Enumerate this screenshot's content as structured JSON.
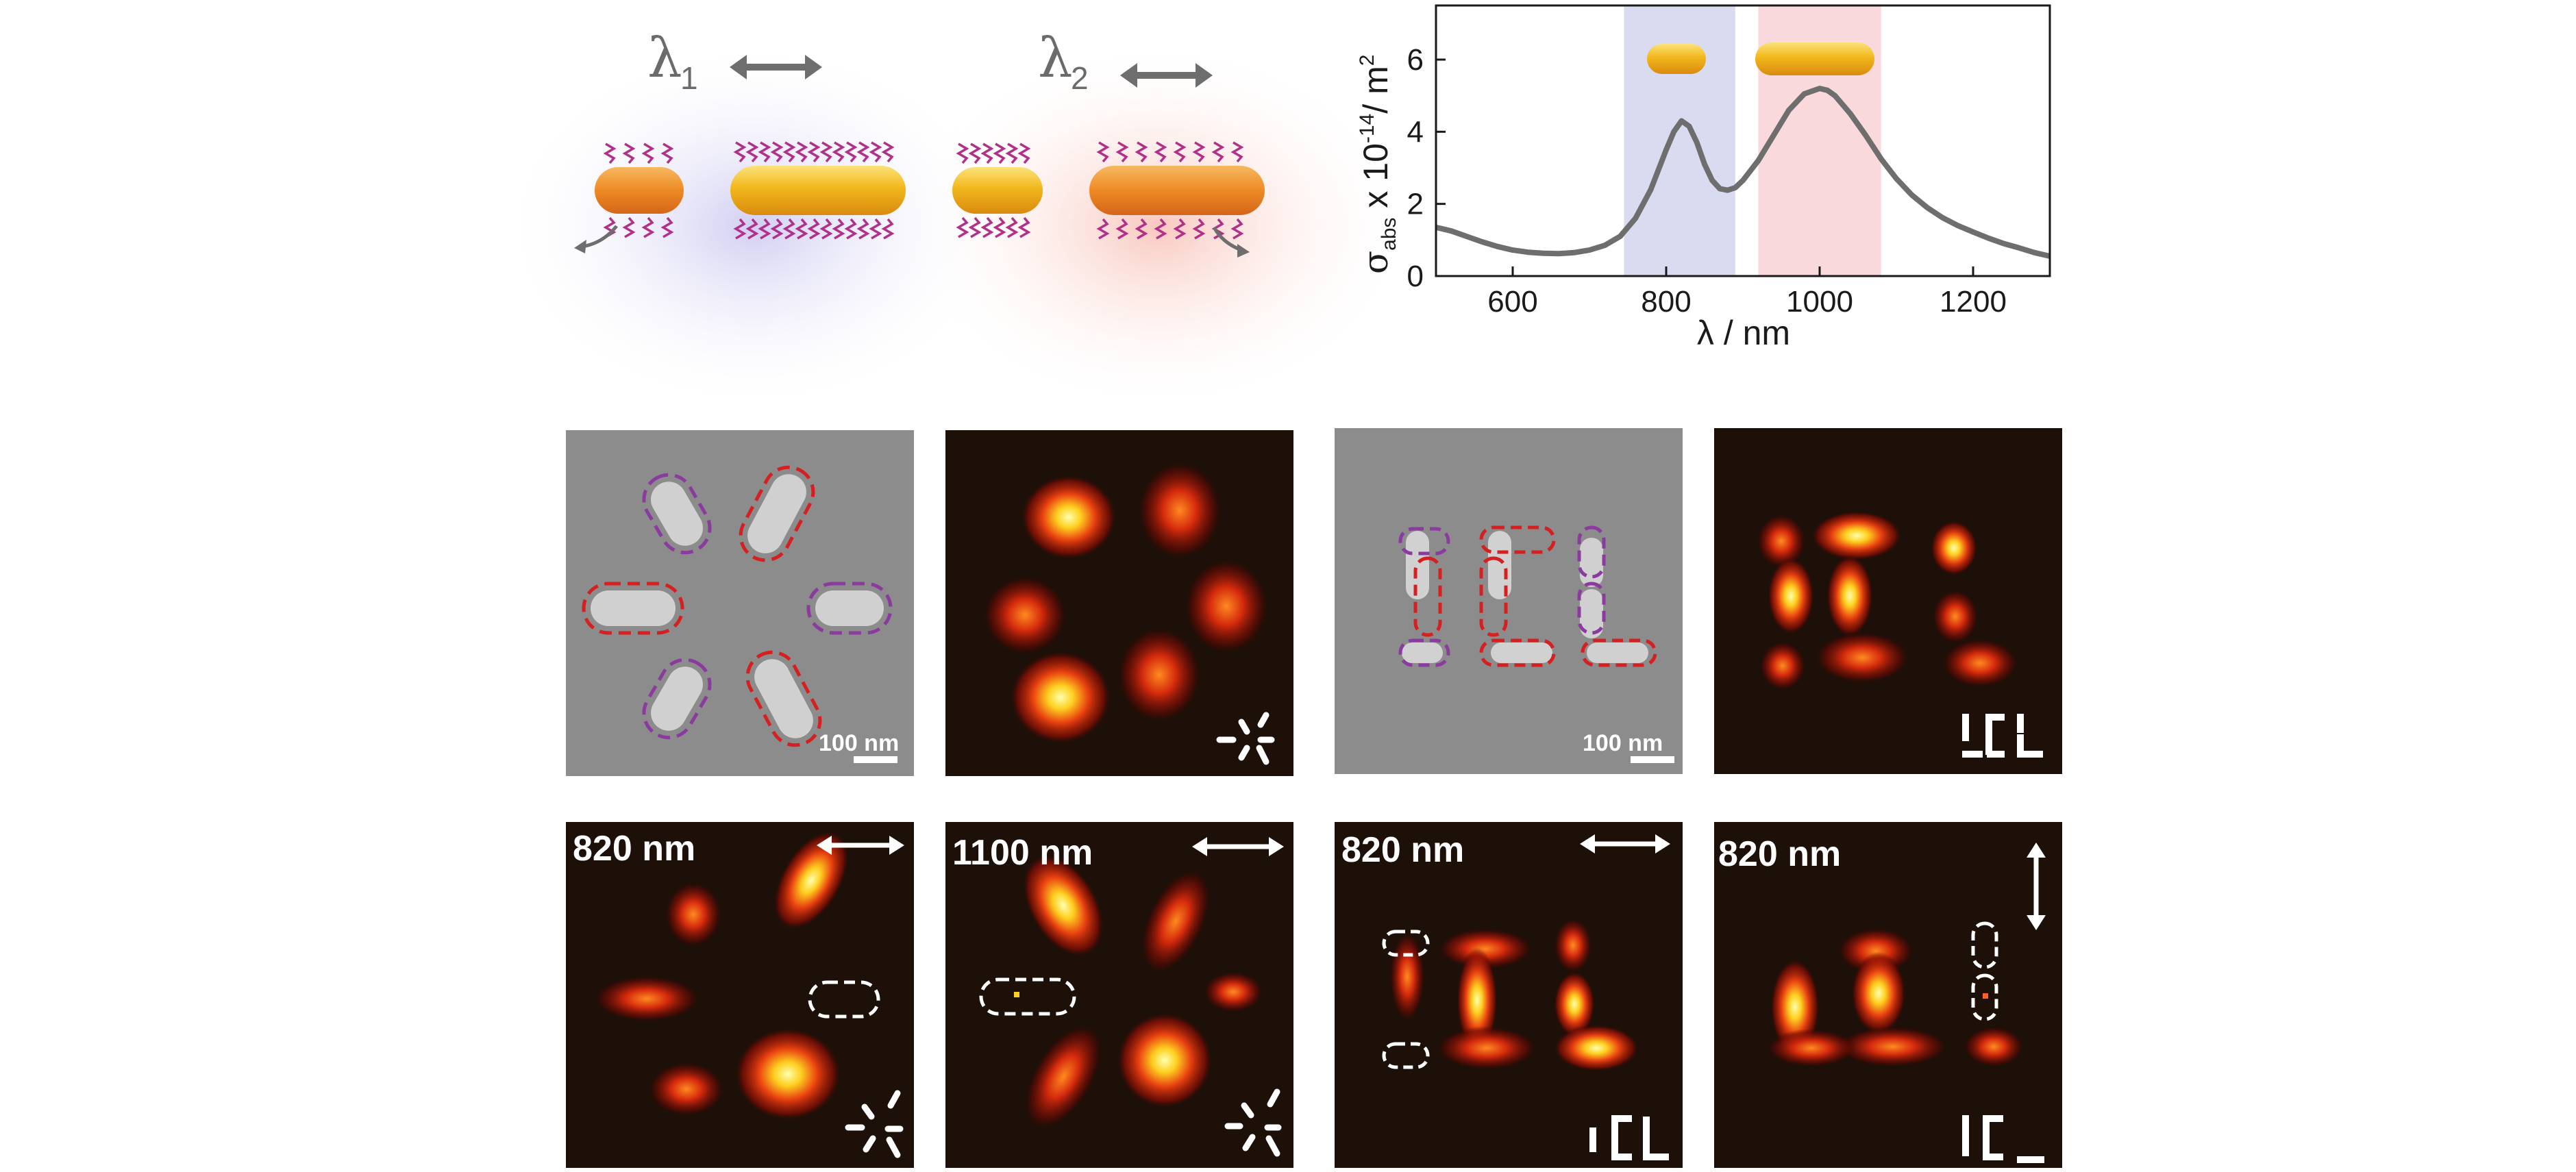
{
  "schematic": {
    "left_label": "λ",
    "left_subscript": "1",
    "right_label": "λ",
    "right_subscript": "2"
  },
  "chart_data": {
    "type": "line",
    "title": "",
    "xlabel": "λ / nm",
    "ylabel_main": "σ",
    "ylabel_sub": "abs",
    "ylabel_rest": " x 10",
    "ylabel_exp": "-14",
    "ylabel_unit": "/ m",
    "ylabel_unit_exp": "2",
    "xlim": [
      500,
      1300
    ],
    "ylim": [
      0,
      7.5
    ],
    "xticks": [
      600,
      800,
      1000,
      1200
    ],
    "yticks": [
      0,
      2,
      4,
      6
    ],
    "grid": false,
    "highlight_bands": [
      {
        "range": [
          745,
          890
        ],
        "color": "#d9dcf0"
      },
      {
        "range": [
          920,
          1080
        ],
        "color": "#f9d9dc"
      }
    ],
    "series": [
      {
        "color": "#6e6e6e",
        "x": [
          500,
          520,
          540,
          560,
          580,
          600,
          620,
          640,
          660,
          680,
          700,
          720,
          740,
          760,
          780,
          800,
          810,
          820,
          830,
          840,
          850,
          860,
          870,
          880,
          890,
          900,
          920,
          940,
          960,
          980,
          1000,
          1010,
          1020,
          1040,
          1060,
          1080,
          1100,
          1120,
          1140,
          1160,
          1180,
          1200,
          1220,
          1240,
          1260,
          1280,
          1300
        ],
        "values": [
          1.35,
          1.25,
          1.1,
          0.95,
          0.82,
          0.72,
          0.66,
          0.63,
          0.62,
          0.65,
          0.72,
          0.85,
          1.1,
          1.6,
          2.4,
          3.5,
          4.0,
          4.3,
          4.15,
          3.7,
          3.1,
          2.65,
          2.42,
          2.38,
          2.45,
          2.65,
          3.2,
          3.9,
          4.6,
          5.05,
          5.2,
          5.15,
          5.0,
          4.5,
          3.9,
          3.25,
          2.7,
          2.25,
          1.9,
          1.62,
          1.4,
          1.22,
          1.05,
          0.9,
          0.78,
          0.65,
          0.55
        ]
      }
    ]
  },
  "panels": {
    "row1": {
      "scale_bar_a": "100 nm",
      "scale_bar_c": "100 nm"
    },
    "row2": {
      "label_a": "820 nm",
      "label_b": "1100 nm",
      "label_c": "820 nm",
      "label_d": "820 nm"
    }
  },
  "colors": {
    "short_rod_outline": "#8b3a9e",
    "long_rod_outline": "#d42020",
    "sem_background": "#8c8c8c",
    "heatmap_background": "#1c1008"
  }
}
